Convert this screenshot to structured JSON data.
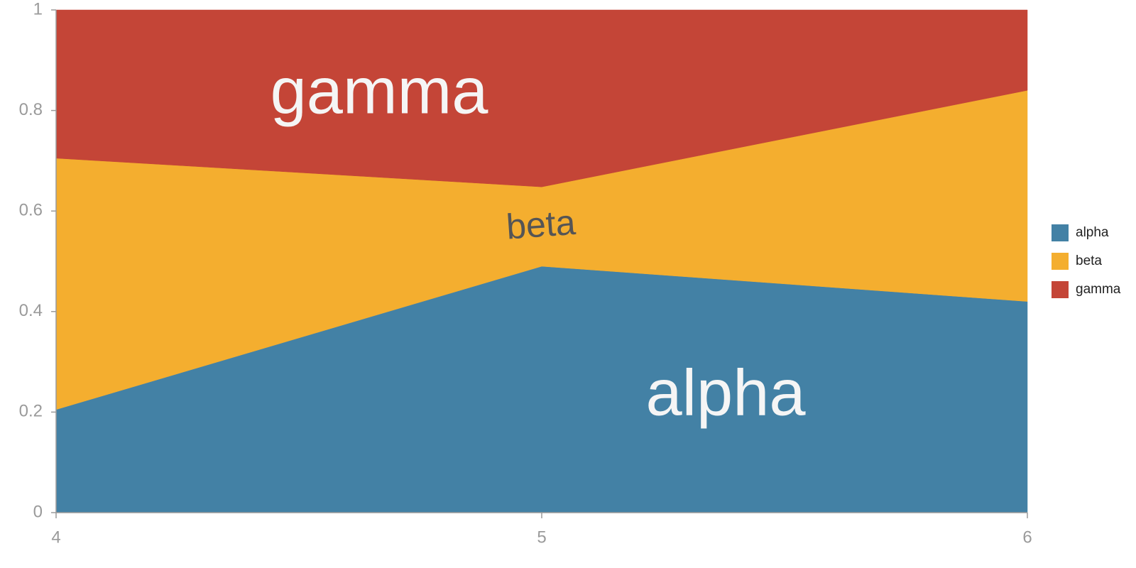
{
  "chart_data": {
    "type": "area",
    "stacking": "percent",
    "x": [
      4,
      5,
      6
    ],
    "xlim": [
      4,
      6
    ],
    "ylim": [
      0,
      1
    ],
    "x_ticks": [
      "4",
      "5",
      "6"
    ],
    "y_ticks": [
      "0",
      "0.2",
      "0.4",
      "0.6",
      "0.8",
      "1"
    ],
    "grid": false,
    "legend_position": "right",
    "series": [
      {
        "name": "alpha",
        "values": [
          0.205,
          0.49,
          0.42
        ],
        "color": "#4381a5"
      },
      {
        "name": "beta",
        "values": [
          0.5,
          0.158,
          0.42
        ],
        "color": "#f4ae2f"
      },
      {
        "name": "gamma",
        "values": [
          0.295,
          0.352,
          0.16
        ],
        "color": "#c44537"
      }
    ],
    "area_labels": [
      "gamma",
      "beta",
      "alpha"
    ]
  }
}
